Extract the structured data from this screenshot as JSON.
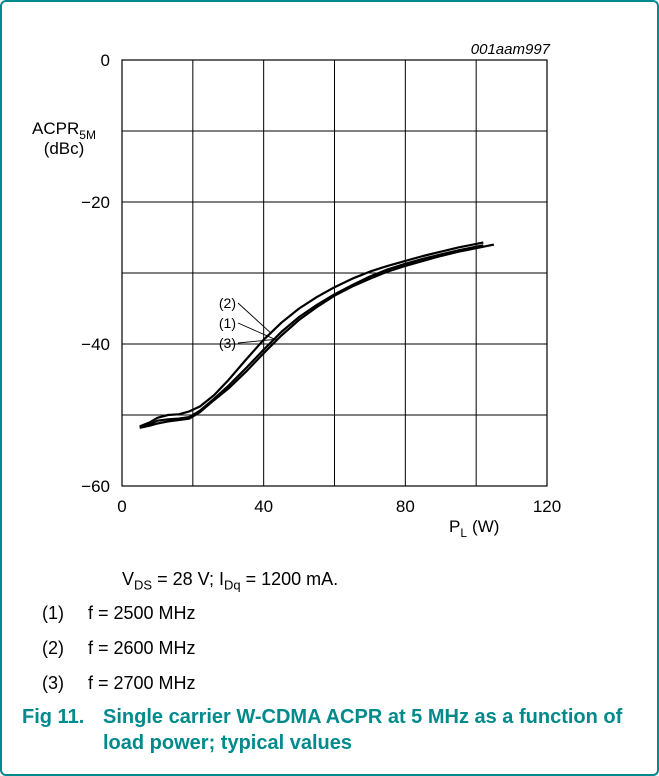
{
  "figure": {
    "id": "001aam997",
    "caption_number": "Fig 11.",
    "caption_text": "Single carrier W-CDMA ACPR at 5 MHz as a function of load power; typical values"
  },
  "conditions": {
    "vds_sym": "V",
    "vds_sub": "DS",
    "vds_rest": " = 28 V; I",
    "idq_sub": "Dq",
    "idq_rest": " = 1200 mA."
  },
  "notes": [
    {
      "num": "(1)",
      "text": "f = 2500 MHz"
    },
    {
      "num": "(2)",
      "text": "f = 2600 MHz"
    },
    {
      "num": "(3)",
      "text": "f = 2700 MHz"
    }
  ],
  "chart_data": {
    "type": "line",
    "ylabel_main": "ACPR",
    "ylabel_sub": "5M",
    "ylabel_unit": "(dBc)",
    "xlabel_main": "P",
    "xlabel_sub": "L",
    "xlabel_unit": "(W)",
    "xlim": [
      0,
      120
    ],
    "ylim": [
      -60,
      0
    ],
    "xticks": [
      0,
      40,
      80,
      120
    ],
    "yticks": [
      0,
      -20,
      -40,
      -60
    ],
    "xgrid": [
      0,
      20,
      40,
      60,
      80,
      100,
      120
    ],
    "ygrid": [
      0,
      -10,
      -20,
      -30,
      -40,
      -50,
      -60
    ],
    "grid": true,
    "series": [
      {
        "name": "(1)",
        "x": [
          5,
          8,
          10,
          13,
          16,
          19,
          22,
          26,
          30,
          35,
          40,
          45,
          50,
          55,
          60,
          65,
          70,
          75,
          80,
          85,
          90,
          95,
          100,
          102
        ],
        "y": [
          -51.7,
          -51.3,
          -50.8,
          -50.6,
          -50.5,
          -50.3,
          -49.4,
          -47.7,
          -45.9,
          -43.4,
          -40.8,
          -38.3,
          -36.2,
          -34.5,
          -33.0,
          -31.7,
          -30.5,
          -29.5,
          -28.7,
          -28.0,
          -27.4,
          -26.8,
          -26.3,
          -26.1
        ]
      },
      {
        "name": "(2)",
        "x": [
          5,
          8,
          10,
          13,
          16,
          19,
          22,
          26,
          30,
          35,
          40,
          45,
          50,
          55,
          60,
          65,
          70,
          75,
          80,
          85,
          90,
          95,
          100,
          102
        ],
        "y": [
          -51.6,
          -51.0,
          -50.4,
          -50.0,
          -49.9,
          -49.5,
          -48.8,
          -47.2,
          -45.1,
          -42.2,
          -39.4,
          -37.0,
          -35.0,
          -33.4,
          -32.0,
          -30.8,
          -29.8,
          -29.0,
          -28.3,
          -27.6,
          -27.0,
          -26.4,
          -25.9,
          -25.7
        ]
      },
      {
        "name": "(3)",
        "x": [
          5,
          8,
          10,
          13,
          16,
          19,
          22,
          26,
          30,
          35,
          40,
          45,
          50,
          55,
          60,
          65,
          70,
          75,
          80,
          85,
          90,
          95,
          100,
          105
        ],
        "y": [
          -51.8,
          -51.5,
          -51.2,
          -50.9,
          -50.7,
          -50.5,
          -49.6,
          -47.9,
          -46.3,
          -43.9,
          -41.3,
          -38.8,
          -36.6,
          -34.8,
          -33.2,
          -31.9,
          -30.8,
          -29.8,
          -29.0,
          -28.3,
          -27.6,
          -27.0,
          -26.5,
          -26.0
        ]
      }
    ],
    "annotations": [
      {
        "label": "(2)",
        "series": "(2)",
        "x": 42
      },
      {
        "label": "(1)",
        "series": "(1)",
        "x": 43
      },
      {
        "label": "(3)",
        "series": "(3)",
        "x": 44
      }
    ]
  }
}
